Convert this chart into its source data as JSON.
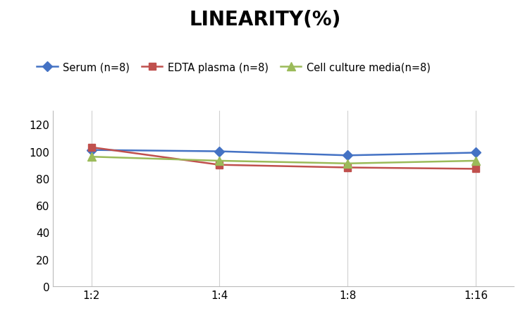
{
  "title": "LINEARITY(%)",
  "title_fontsize": 20,
  "title_fontweight": "bold",
  "x_labels": [
    "1:2",
    "1:4",
    "1:8",
    "1:16"
  ],
  "x_values": [
    0,
    1,
    2,
    3
  ],
  "series": [
    {
      "label": "Serum (n=8)",
      "values": [
        101,
        100,
        97,
        99
      ],
      "color": "#4472C4",
      "marker": "D",
      "markersize": 7,
      "linewidth": 1.8
    },
    {
      "label": "EDTA plasma (n=8)",
      "values": [
        103,
        90,
        88,
        87
      ],
      "color": "#C0504D",
      "marker": "s",
      "markersize": 7,
      "linewidth": 1.8
    },
    {
      "label": "Cell culture media(n=8)",
      "values": [
        96,
        93,
        91,
        93
      ],
      "color": "#9BBB59",
      "marker": "^",
      "markersize": 8,
      "linewidth": 1.8
    }
  ],
  "ylim": [
    0,
    130
  ],
  "yticks": [
    0,
    20,
    40,
    60,
    80,
    100,
    120
  ],
  "grid_color": "#D0D0D0",
  "background_color": "#FFFFFF",
  "legend_fontsize": 10.5,
  "axis_fontsize": 11
}
